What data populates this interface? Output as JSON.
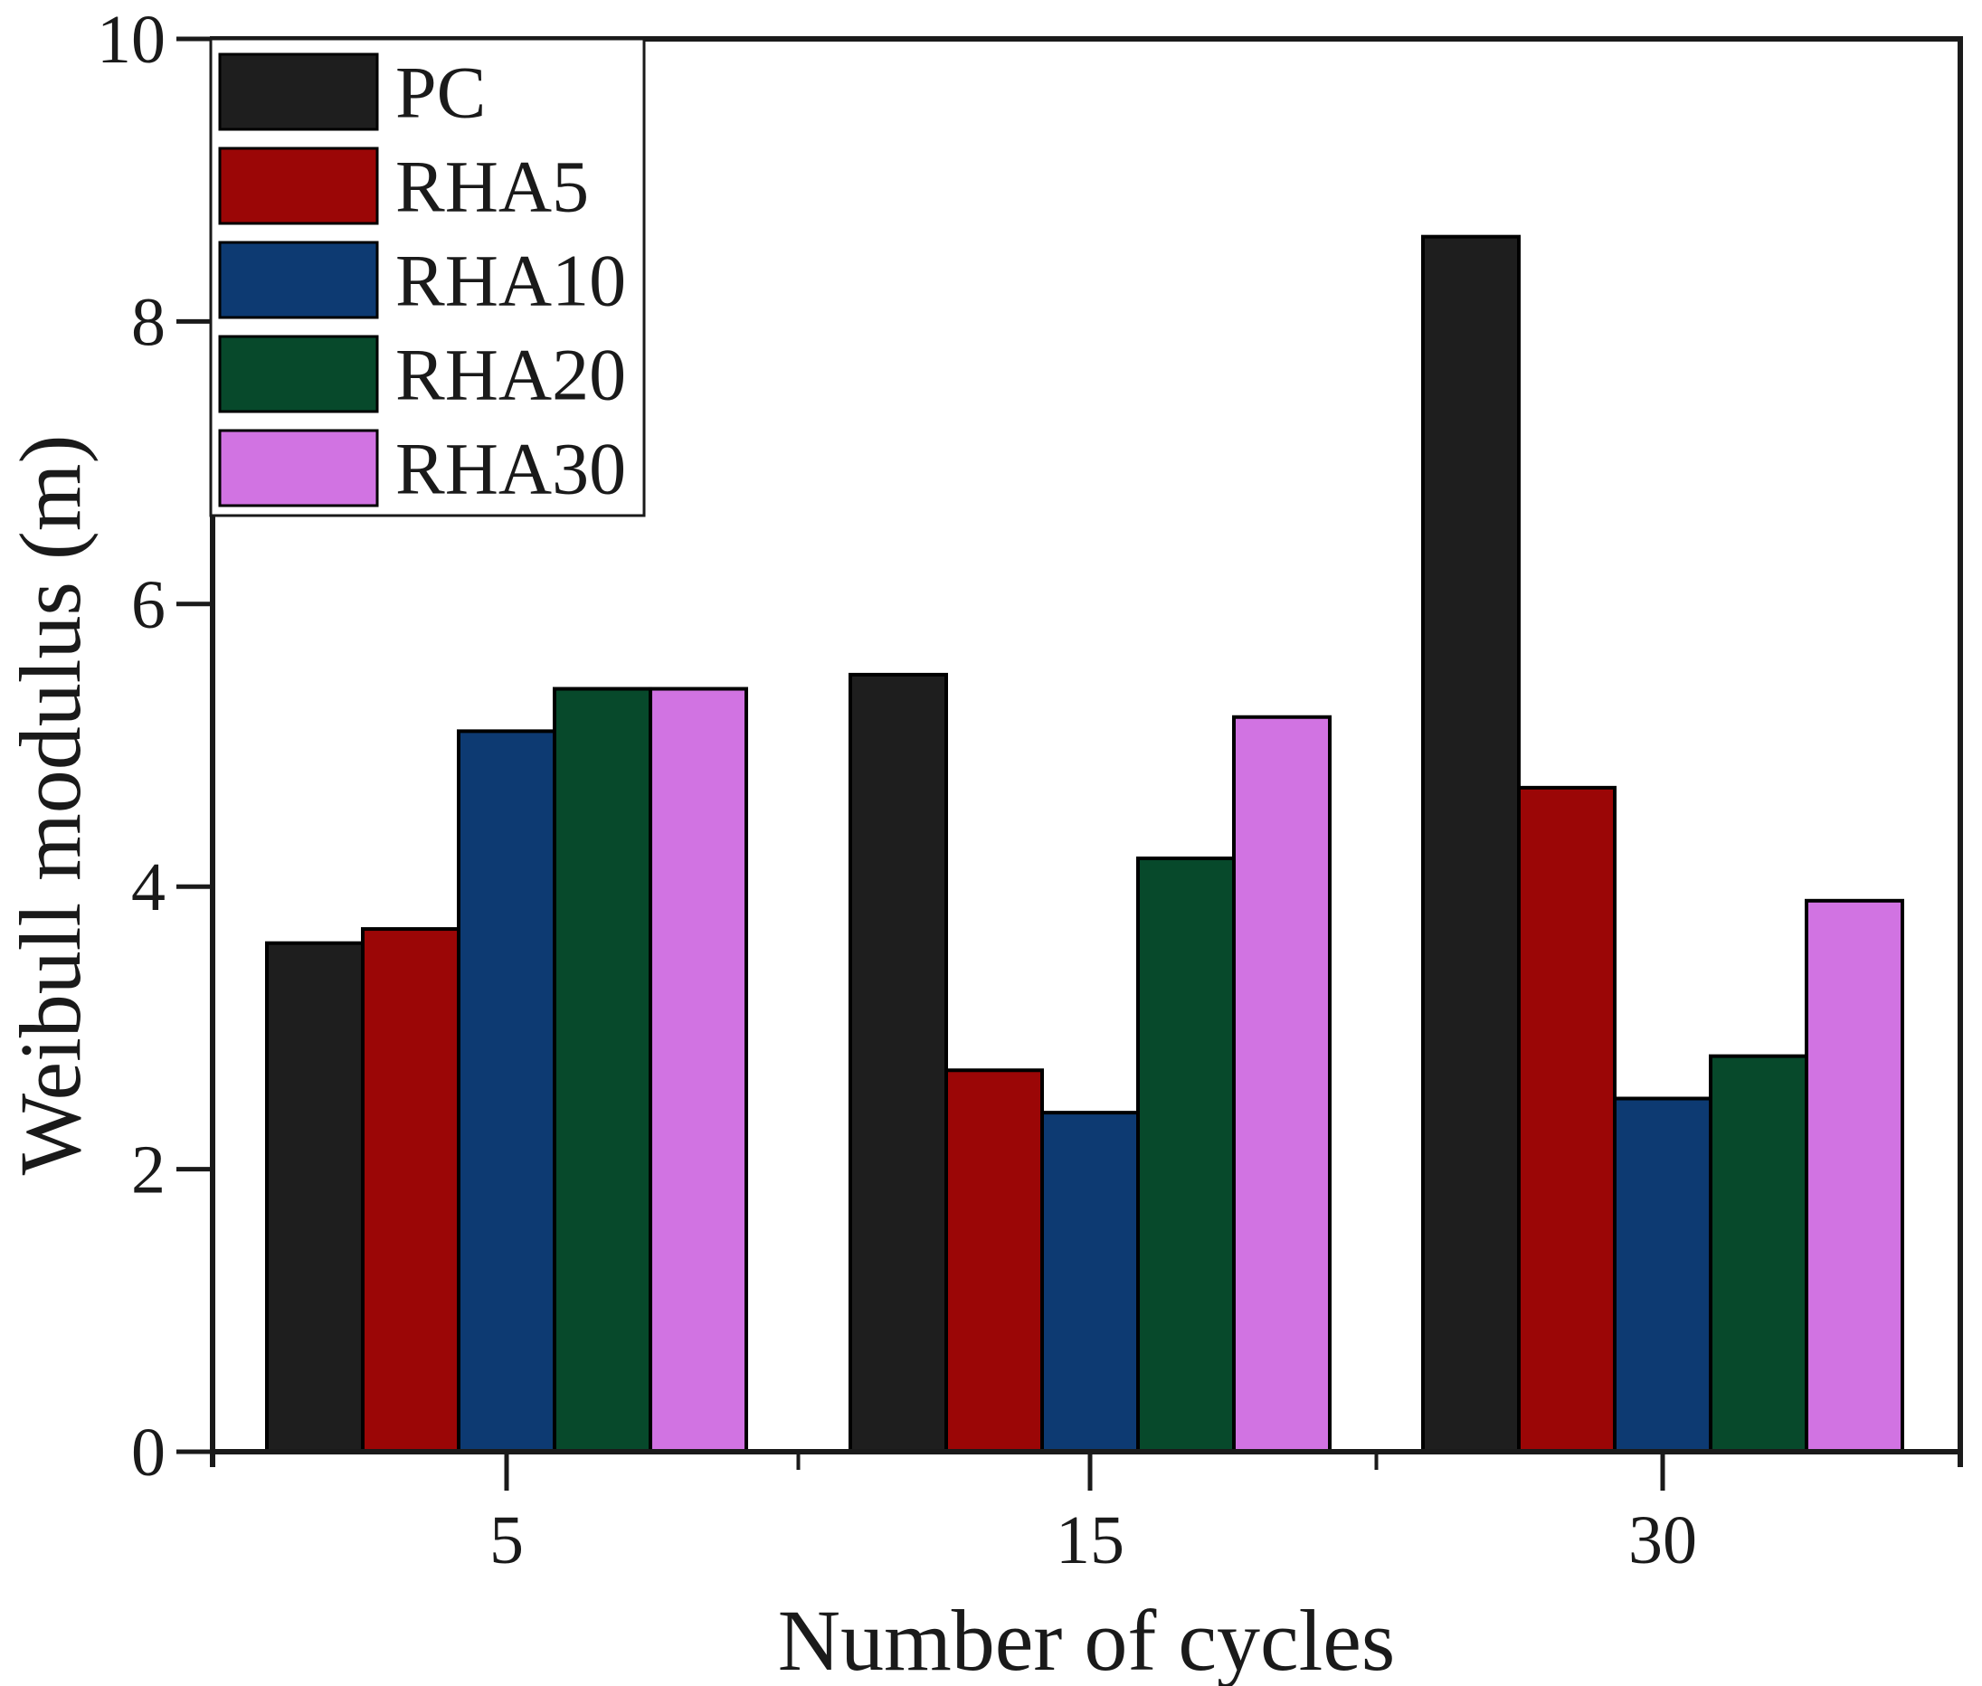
{
  "figure": {
    "background": "#ffffff",
    "axis_color": "#1a1a1a",
    "text_color": "#1a1a1a"
  },
  "chart_data": {
    "type": "bar",
    "title": "",
    "xlabel": "Number of cycles",
    "ylabel": "Weibull modulus (m)",
    "categories": [
      "5",
      "15",
      "30"
    ],
    "series": [
      {
        "name": "PC",
        "color": "#1e1e1e",
        "values": [
          3.6,
          5.5,
          8.6
        ]
      },
      {
        "name": "RHA5",
        "color": "#9b0606",
        "values": [
          3.7,
          2.7,
          4.7
        ]
      },
      {
        "name": "RHA10",
        "color": "#0d3a72",
        "values": [
          5.1,
          2.4,
          2.5
        ]
      },
      {
        "name": "RHA20",
        "color": "#07492b",
        "values": [
          5.4,
          4.2,
          2.8
        ]
      },
      {
        "name": "RHA30",
        "color": "#d173e2",
        "values": [
          5.4,
          5.2,
          3.9
        ]
      }
    ],
    "ylim": [
      0,
      10
    ],
    "yticks": [
      0,
      2,
      4,
      6,
      8,
      10
    ],
    "grid": false,
    "legend_position": "top-left",
    "bar_edge_color": "#000000"
  }
}
